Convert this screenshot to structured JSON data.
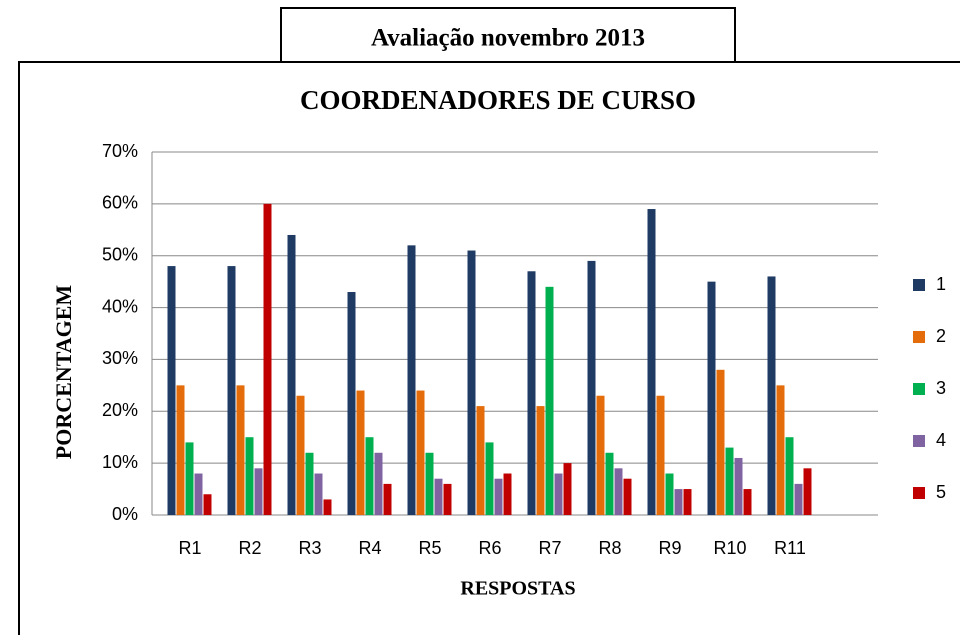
{
  "page_title": "Avaliação novembro 2013",
  "chart_data": {
    "type": "bar",
    "title": "COORDENADORES DE CURSO",
    "x_label": "RESPOSTAS",
    "y_label": "PORCENTAGEM",
    "categories": [
      "R1",
      "R2",
      "R3",
      "R4",
      "R5",
      "R6",
      "R7",
      "R8",
      "R9",
      "R10",
      "R11"
    ],
    "series": [
      {
        "name": "1",
        "color": "#1f3b64",
        "values": [
          48,
          48,
          54,
          43,
          52,
          51,
          47,
          49,
          59,
          45,
          46
        ]
      },
      {
        "name": "2",
        "color": "#e46c0a",
        "values": [
          25,
          25,
          23,
          24,
          24,
          21,
          21,
          23,
          23,
          28,
          25
        ]
      },
      {
        "name": "3",
        "color": "#00b050",
        "values": [
          14,
          15,
          12,
          15,
          12,
          14,
          44,
          12,
          8,
          13,
          15
        ]
      },
      {
        "name": "4",
        "color": "#8064a2",
        "values": [
          8,
          9,
          8,
          12,
          7,
          7,
          8,
          9,
          5,
          11,
          6
        ]
      },
      {
        "name": "5",
        "color": "#c00000",
        "values": [
          4,
          60,
          3,
          6,
          6,
          8,
          10,
          7,
          5,
          5,
          9
        ]
      }
    ],
    "ylim": [
      0,
      70
    ],
    "yticks": [
      {
        "value": 0,
        "label": "0%"
      },
      {
        "value": 10,
        "label": "10%"
      },
      {
        "value": 20,
        "label": "20%"
      },
      {
        "value": 30,
        "label": "30%"
      },
      {
        "value": 40,
        "label": "40%"
      },
      {
        "value": 50,
        "label": "50%"
      },
      {
        "value": 60,
        "label": "60%"
      },
      {
        "value": 70,
        "label": "70%"
      }
    ],
    "grid": true,
    "legend": "right"
  }
}
